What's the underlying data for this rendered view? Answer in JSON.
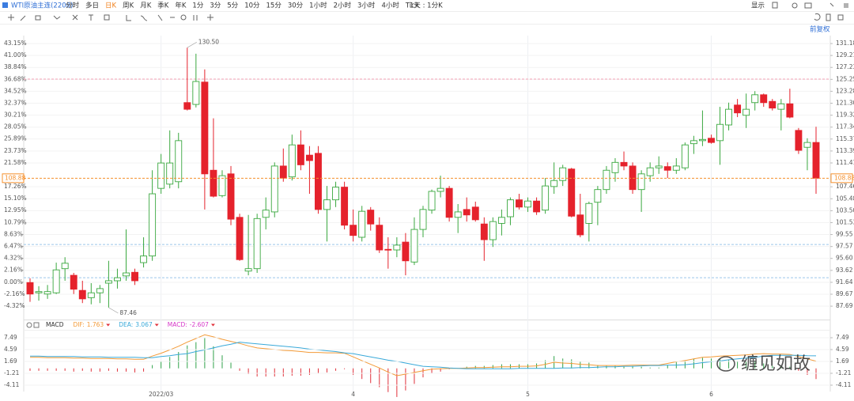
{
  "toolbar": {
    "symbol": "WTI原油主连(2208)",
    "periods": [
      "分时",
      "多日",
      "日K",
      "周K",
      "月K",
      "季K",
      "年K",
      "1分",
      "3分",
      "5分",
      "10分",
      "15分",
      "30分",
      "1小时",
      "2小时",
      "3小时",
      "4小时",
      "Tick"
    ],
    "active_period": 2,
    "range_select": "1天 : 1分K",
    "display": "显示",
    "adjust": "前复权"
  },
  "watermark": "缠见如故",
  "chart_data": [
    {
      "type": "candlestick",
      "categories": [
        null,
        null,
        null,
        null,
        null,
        null,
        null,
        null,
        null,
        null,
        null,
        null,
        null,
        null,
        null,
        "2022/03",
        null,
        null,
        null,
        null,
        null,
        null,
        null,
        null,
        null,
        null,
        null,
        null,
        null,
        null,
        null,
        null,
        null,
        null,
        null,
        null,
        null,
        "4",
        null,
        null,
        null,
        null,
        null,
        null,
        null,
        null,
        null,
        null,
        null,
        null,
        null,
        null,
        null,
        null,
        null,
        null,
        null,
        "5",
        null,
        null,
        null,
        null,
        null,
        null,
        null,
        null,
        null,
        null,
        null,
        null,
        null,
        null,
        null,
        null,
        null,
        null,
        null,
        null,
        "6",
        null,
        null,
        null,
        null,
        null,
        null,
        null,
        null,
        null,
        null,
        null,
        null
      ],
      "open": [
        91.6,
        89.9,
        89.7,
        89.9,
        93.9,
        92.8,
        90.3,
        89.1,
        89.9,
        91.5,
        91.9,
        92.7,
        93.3,
        94.9,
        96.0,
        107.2,
        107.9,
        108.3,
        121.4,
        121.1,
        124.8,
        110.2,
        106.0,
        109.6,
        102.4,
        93.5,
        93.9,
        102.4,
        103.3,
        110.9,
        109.1,
        114.4,
        112.7,
        113.0,
        103.7,
        105.3,
        107.4,
        101.1,
        99.1,
        103.6,
        101.1,
        97.1,
        97.0,
        98.3,
        95.0,
        100.4,
        103.6,
        106.7,
        107.2,
        102.4,
        103.7,
        104.1,
        101.3,
        98.7,
        101.4,
        102.5,
        105.3,
        104.1,
        105.1,
        103.6,
        107.5,
        108.5,
        110.4,
        102.8,
        101.4,
        104.9,
        107.0,
        109.8,
        111.5,
        110.9,
        107.0,
        109.3,
        110.6,
        110.8,
        110.2,
        110.6,
        114.6,
        115.1,
        115.5,
        115.1,
        117.7,
        121.0,
        119.3,
        121.4,
        122.7,
        121.6,
        120.3,
        121.2,
        116.8,
        114.0,
        114.8
      ],
      "high": [
        92.3,
        91.0,
        91.2,
        94.9,
        95.8,
        93.2,
        91.9,
        91.5,
        91.2,
        95.2,
        93.9,
        100.4,
        93.9,
        99.1,
        110.2,
        112.9,
        116.8,
        116.4,
        130.5,
        129.5,
        126.9,
        118.8,
        110.2,
        110.9,
        103.0,
        102.8,
        103.0,
        105.7,
        111.5,
        113.8,
        116.1,
        116.8,
        114.2,
        114.2,
        107.6,
        108.3,
        108.3,
        103.7,
        104.3,
        104.1,
        102.4,
        99.1,
        99.1,
        99.8,
        102.4,
        104.3,
        107.0,
        109.3,
        107.6,
        104.6,
        105.7,
        105.0,
        102.4,
        102.4,
        103.7,
        105.7,
        106.3,
        105.7,
        105.7,
        108.9,
        111.5,
        111.1,
        110.6,
        106.3,
        105.0,
        107.6,
        110.9,
        112.2,
        113.3,
        111.5,
        110.2,
        111.5,
        112.5,
        111.5,
        112.2,
        114.8,
        115.9,
        120.1,
        116.1,
        120.7,
        121.4,
        122.0,
        122.9,
        123.3,
        122.9,
        122.0,
        122.0,
        123.7,
        117.2,
        115.5,
        117.4
      ],
      "low": [
        88.4,
        88.6,
        88.9,
        89.7,
        91.9,
        89.7,
        88.2,
        88.0,
        88.2,
        87.46,
        90.6,
        91.9,
        91.2,
        94.1,
        95.2,
        106.3,
        107.2,
        107.2,
        120.1,
        120.6,
        103.7,
        105.7,
        105.7,
        101.1,
        95.2,
        92.8,
        93.2,
        100.4,
        102.4,
        108.3,
        108.5,
        110.2,
        106.3,
        103.0,
        98.4,
        104.1,
        100.4,
        98.4,
        98.4,
        100.2,
        96.5,
        93.9,
        95.8,
        92.8,
        94.5,
        99.1,
        103.0,
        105.7,
        101.7,
        99.8,
        101.7,
        101.7,
        95.2,
        97.5,
        99.4,
        101.1,
        103.7,
        103.3,
        102.8,
        103.0,
        106.3,
        107.6,
        102.4,
        99.1,
        98.4,
        101.1,
        106.3,
        108.3,
        110.2,
        106.3,
        103.3,
        108.3,
        109.6,
        108.9,
        109.6,
        110.2,
        112.9,
        114.2,
        114.6,
        111.1,
        116.8,
        119.0,
        117.2,
        120.1,
        120.7,
        120.1,
        116.8,
        118.8,
        112.9,
        110.2,
        106.3
      ],
      "close": [
        89.7,
        90.1,
        90.1,
        93.7,
        94.8,
        90.5,
        88.9,
        89.9,
        90.6,
        91.9,
        92.4,
        93.2,
        91.9,
        96.0,
        106.3,
        111.4,
        111.4,
        115.1,
        120.3,
        124.9,
        109.6,
        105.9,
        109.3,
        102.1,
        95.4,
        93.9,
        102.2,
        103.6,
        110.9,
        108.9,
        114.4,
        111.1,
        111.8,
        103.7,
        105.3,
        107.4,
        101.1,
        99.4,
        103.4,
        101.3,
        97.0,
        97.0,
        97.8,
        95.2,
        100.4,
        103.7,
        106.7,
        107.2,
        102.4,
        103.3,
        102.8,
        102.0,
        98.7,
        101.7,
        102.4,
        105.3,
        104.1,
        105.1,
        103.3,
        107.6,
        108.5,
        110.6,
        102.6,
        99.5,
        104.7,
        107.0,
        110.2,
        111.5,
        110.9,
        107.0,
        109.6,
        110.6,
        110.9,
        110.2,
        110.9,
        114.4,
        115.1,
        115.3,
        114.8,
        117.8,
        120.3,
        119.7,
        120.3,
        122.7,
        121.4,
        120.5,
        121.2,
        119.0,
        113.5,
        114.8,
        108.88
      ],
      "up_color": "#3aa83f",
      "down_color": "#e5222c",
      "ylim": [
        86,
        132.5
      ],
      "yticks": [
        131.18,
        129.21,
        127.23,
        125.25,
        123.28,
        {
          "value": 121.3,
          "label": "121.30"
        },
        119.32,
        117.34,
        115.37,
        113.39,
        111.41,
        107.46,
        105.48,
        {
          "value": 103.5,
          "label": "103.50"
        },
        101.53,
        99.55,
        97.57,
        {
          "value": 95.6,
          "label": "95.60"
        },
        93.62,
        91.64,
        89.67,
        87.69
      ],
      "y2lim": [
        -6.18,
        44.58
      ],
      "y2ticks": [
        {
          "value": 43.15,
          "label": "43.15%"
        },
        {
          "value": 41,
          "label": "41.00%"
        },
        {
          "value": 38.84,
          "label": "38.84%"
        },
        {
          "value": 36.68,
          "label": "36.68%"
        },
        {
          "value": 34.52,
          "label": "34.52%"
        },
        {
          "value": 32.37,
          "label": "32.37%"
        },
        {
          "value": 30.21,
          "label": "30.21%"
        },
        {
          "value": 28.05,
          "label": "28.05%"
        },
        {
          "value": 25.89,
          "label": "25.89%"
        },
        {
          "value": 23.73,
          "label": "23.73%"
        },
        {
          "value": 21.58,
          "label": "21.58%"
        },
        {
          "value": 17.26,
          "label": "17.26%"
        },
        {
          "value": 15.1,
          "label": "15.10%"
        },
        {
          "value": 12.95,
          "label": "12.95%"
        },
        {
          "value": 10.79,
          "label": "10.79%"
        },
        {
          "value": 8.63,
          "label": "8.63%"
        },
        {
          "value": 6.47,
          "label": "6.47%"
        },
        {
          "value": 4.32,
          "label": "4.32%"
        },
        {
          "value": 2.16,
          "label": "2.16%"
        },
        {
          "value": 0,
          "label": "0.00%"
        },
        {
          "value": -2.16,
          "label": "-2.16%"
        },
        {
          "value": -4.32,
          "label": "-4.32%"
        }
      ],
      "grid": true,
      "current_price": {
        "value": 108.88,
        "label": "108.88",
        "color": "#f5902d"
      },
      "hlines": [
        {
          "value": 125.3,
          "color": "#f4a3b6"
        },
        {
          "value": 97.9,
          "color": "#9cc8ea"
        },
        {
          "value": 92.4,
          "color": "#9cc8ea"
        }
      ],
      "annotations": [
        {
          "value": 130.5,
          "label": "130.50"
        },
        {
          "value": 87.46,
          "label": "87.46"
        }
      ]
    },
    {
      "type": "macd",
      "title": "MACD",
      "ylim": [
        -5.66,
        8.84
      ],
      "yticks": [
        7.49,
        4.59,
        1.69,
        -1.21,
        -4.11
      ],
      "up_color": "#2fa24a",
      "down_color": "#e0303a",
      "series": [
        {
          "name": "DIF:",
          "color": "#f39a37",
          "values": [
            2.7,
            2.7,
            2.6,
            2.6,
            2.6,
            2.5,
            2.5,
            2.4,
            2.4,
            2.4,
            2.3,
            2.3,
            2.2,
            2.2,
            3.0,
            3.7,
            4.5,
            5.4,
            6.4,
            7.3,
            8.2,
            7.7,
            7.1,
            6.6,
            6.1,
            5.5,
            5.0,
            4.8,
            4.6,
            4.4,
            4.3,
            4.1,
            3.9,
            3.9,
            3.8,
            3.8,
            3.7,
            2.8,
            1.9,
            1.0,
            0.1,
            -0.9,
            -1.8,
            -1.4,
            -1.0,
            -0.6,
            -0.2,
            -0.1,
            0.0,
            0.0,
            0.1,
            0.2,
            0.2,
            0.3,
            0.4,
            0.4,
            0.5,
            0.5,
            0.6,
            1.0,
            1.5,
            1.3,
            1.2,
            1.0,
            0.9,
            0.7,
            0.7,
            0.7,
            0.7,
            0.8,
            0.8,
            0.8,
            0.8,
            1.2,
            1.6,
            1.9,
            2.3,
            2.7,
            2.8,
            3.0,
            3.1,
            3.2,
            3.3,
            3.5,
            3.6,
            3.5,
            3.5,
            3.4,
            2.9,
            2.3,
            1.763
          ]
        },
        {
          "name": "DEA:",
          "color": "#39a9d9",
          "values": [
            3.0,
            3.0,
            2.9,
            2.9,
            2.9,
            2.9,
            2.8,
            2.8,
            2.8,
            2.7,
            2.7,
            2.7,
            2.7,
            2.6,
            2.6,
            2.9,
            3.1,
            3.4,
            3.6,
            4.1,
            4.5,
            5.0,
            5.5,
            5.9,
            6.4,
            6.2,
            6.0,
            5.8,
            5.6,
            5.4,
            5.2,
            5.0,
            4.7,
            4.5,
            4.3,
            4.1,
            3.8,
            3.6,
            3.2,
            2.8,
            2.4,
            2.0,
            1.7,
            1.3,
            0.9,
            0.5,
            0.4,
            0.3,
            0.1,
            0.0,
            -0.1,
            -0.1,
            -0.1,
            -0.1,
            -0.1,
            -0.1,
            0.0,
            0.0,
            0.0,
            0.0,
            0.0,
            0.1,
            0.1,
            0.2,
            0.2,
            0.3,
            0.4,
            0.4,
            0.5,
            0.5,
            0.6,
            0.7,
            0.7,
            0.8,
            0.8,
            0.9,
            1.1,
            1.4,
            1.6,
            1.8,
            2.1,
            2.3,
            2.5,
            2.7,
            3.0,
            3.2,
            3.2,
            3.2,
            3.2,
            3.1,
            3.067
          ]
        },
        {
          "name": "MACD:",
          "color": "#d636c8",
          "values": [
            -0.6,
            -0.6,
            -0.6,
            -0.6,
            -0.6,
            -0.8,
            -0.6,
            -0.8,
            -0.8,
            -0.6,
            -0.8,
            -0.8,
            -1.0,
            -0.8,
            0.8,
            1.6,
            2.8,
            4.0,
            5.6,
            6.4,
            7.4,
            5.4,
            3.2,
            1.4,
            -0.6,
            -1.4,
            -2.0,
            -2.0,
            -2.0,
            -2.0,
            -1.8,
            -1.8,
            -1.6,
            -1.2,
            -1.0,
            -0.6,
            -0.2,
            -1.6,
            -2.6,
            -3.6,
            -4.6,
            -5.8,
            -7.0,
            -5.4,
            -3.8,
            -2.2,
            -1.2,
            -0.8,
            -0.2,
            0.0,
            0.4,
            0.6,
            0.6,
            0.8,
            1.0,
            1.0,
            1.0,
            1.0,
            1.2,
            2.0,
            3.0,
            2.4,
            2.2,
            1.6,
            1.4,
            0.8,
            0.6,
            0.6,
            0.4,
            0.6,
            0.4,
            0.2,
            0.2,
            0.8,
            1.6,
            2.0,
            2.4,
            2.6,
            2.4,
            2.4,
            2.0,
            1.8,
            1.6,
            1.6,
            1.2,
            0.6,
            0.6,
            0.4,
            -0.6,
            -1.6,
            -2.607
          ]
        }
      ]
    }
  ]
}
